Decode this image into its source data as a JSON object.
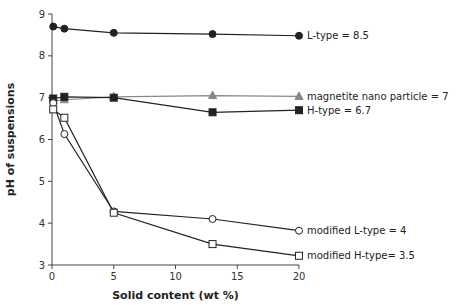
{
  "chart_data": {
    "type": "line",
    "x_label": "Solid content (wt %)",
    "y_label": "pH of suspensions",
    "x": [
      0.1,
      1,
      5,
      13,
      20
    ],
    "series": [
      {
        "name": "L-type = 8.5",
        "color": "#222222",
        "marker": "circle",
        "values": [
          8.7,
          8.65,
          8.55,
          8.52,
          8.48
        ]
      },
      {
        "name": "magnetite nano particle = 7",
        "color": "#888888",
        "marker": "triangle",
        "values": [
          6.92,
          6.95,
          7.02,
          7.05,
          7.03
        ]
      },
      {
        "name": "H-type = 6.7",
        "color": "#222222",
        "marker": "square",
        "values": [
          6.98,
          7.02,
          7.0,
          6.65,
          6.7
        ]
      },
      {
        "name": "modified L-type = 4",
        "color": "#222222",
        "marker": "circle-open",
        "values": [
          6.87,
          6.13,
          4.28,
          4.1,
          3.82
        ]
      },
      {
        "name": "modified H-type= 3.5",
        "color": "#222222",
        "marker": "square-open",
        "values": [
          6.72,
          6.52,
          4.25,
          3.5,
          3.22
        ]
      }
    ],
    "xlim": [
      0,
      20
    ],
    "ylim": [
      3,
      9
    ],
    "xticks": [
      0,
      5,
      10,
      15,
      20
    ],
    "yticks": [
      3,
      4,
      5,
      6,
      7,
      8,
      9
    ],
    "grid": false
  }
}
